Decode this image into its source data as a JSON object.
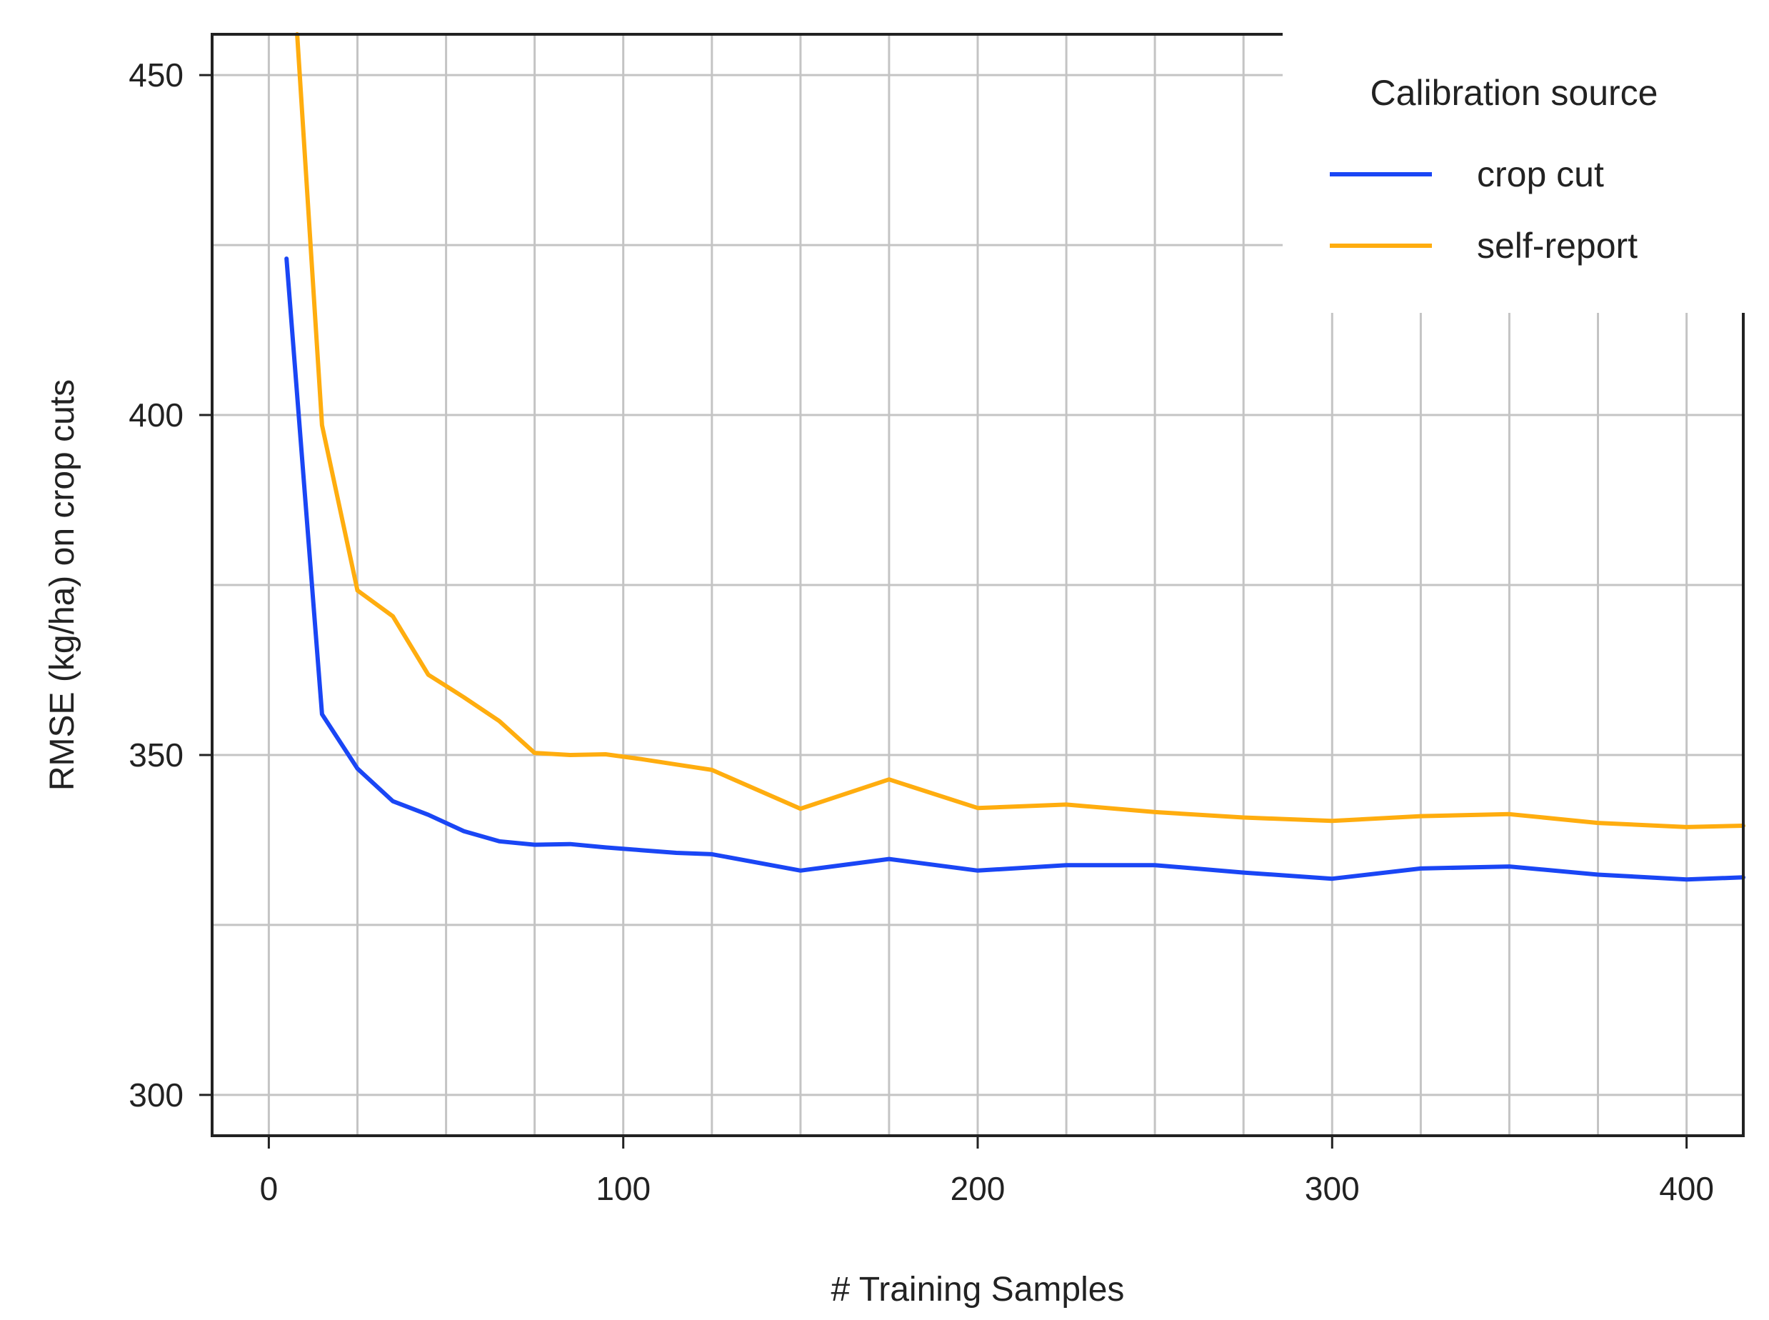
{
  "chart_data": {
    "type": "line",
    "title": "",
    "xlabel": "# Training Samples",
    "ylabel": "RMSE (kg/ha) on crop cuts",
    "xlim": [
      -16,
      416
    ],
    "ylim": [
      294,
      456
    ],
    "x_ticks": [
      0,
      100,
      200,
      300,
      400
    ],
    "x_tick_labels": [
      "0",
      "100",
      "200",
      "300",
      "400"
    ],
    "y_ticks": [
      300,
      350,
      400,
      450
    ],
    "y_tick_labels": [
      "300",
      "350",
      "400",
      "450"
    ],
    "x_grid": [
      0,
      25,
      50,
      75,
      100,
      125,
      150,
      175,
      200,
      225,
      250,
      275,
      300,
      325,
      350,
      375,
      400
    ],
    "y_grid": [
      300,
      325,
      350,
      375,
      400,
      425,
      450
    ],
    "grid": true,
    "legend": {
      "title": "Calibration source",
      "position": "top-right"
    },
    "series": [
      {
        "name": "crop cut",
        "color": "#1a46f5",
        "x": [
          5,
          15,
          25,
          35,
          45,
          55,
          65,
          75,
          85,
          95,
          105,
          115,
          125,
          150,
          175,
          200,
          225,
          250,
          275,
          300,
          325,
          350,
          375,
          400,
          416
        ],
        "y": [
          423,
          356,
          348,
          343.2,
          341.2,
          338.8,
          337.3,
          336.8,
          336.9,
          336.4,
          336.0,
          335.6,
          335.4,
          333.0,
          334.7,
          333.0,
          333.8,
          333.8,
          332.7,
          331.8,
          333.3,
          333.6,
          332.4,
          331.7,
          332.0
        ]
      },
      {
        "name": "self-report",
        "color": "#ffad0f",
        "x": [
          8,
          15,
          25,
          35,
          45,
          55,
          65,
          75,
          85,
          95,
          105,
          115,
          125,
          150,
          175,
          200,
          225,
          250,
          275,
          300,
          325,
          350,
          375,
          400,
          416
        ],
        "y": [
          456,
          398.5,
          374.2,
          370.4,
          361.8,
          358.5,
          355.0,
          350.3,
          350.0,
          350.1,
          349.4,
          348.6,
          347.8,
          342.1,
          346.4,
          342.2,
          342.7,
          341.6,
          340.8,
          340.3,
          341.0,
          341.3,
          340.0,
          339.4,
          339.6
        ]
      }
    ]
  }
}
